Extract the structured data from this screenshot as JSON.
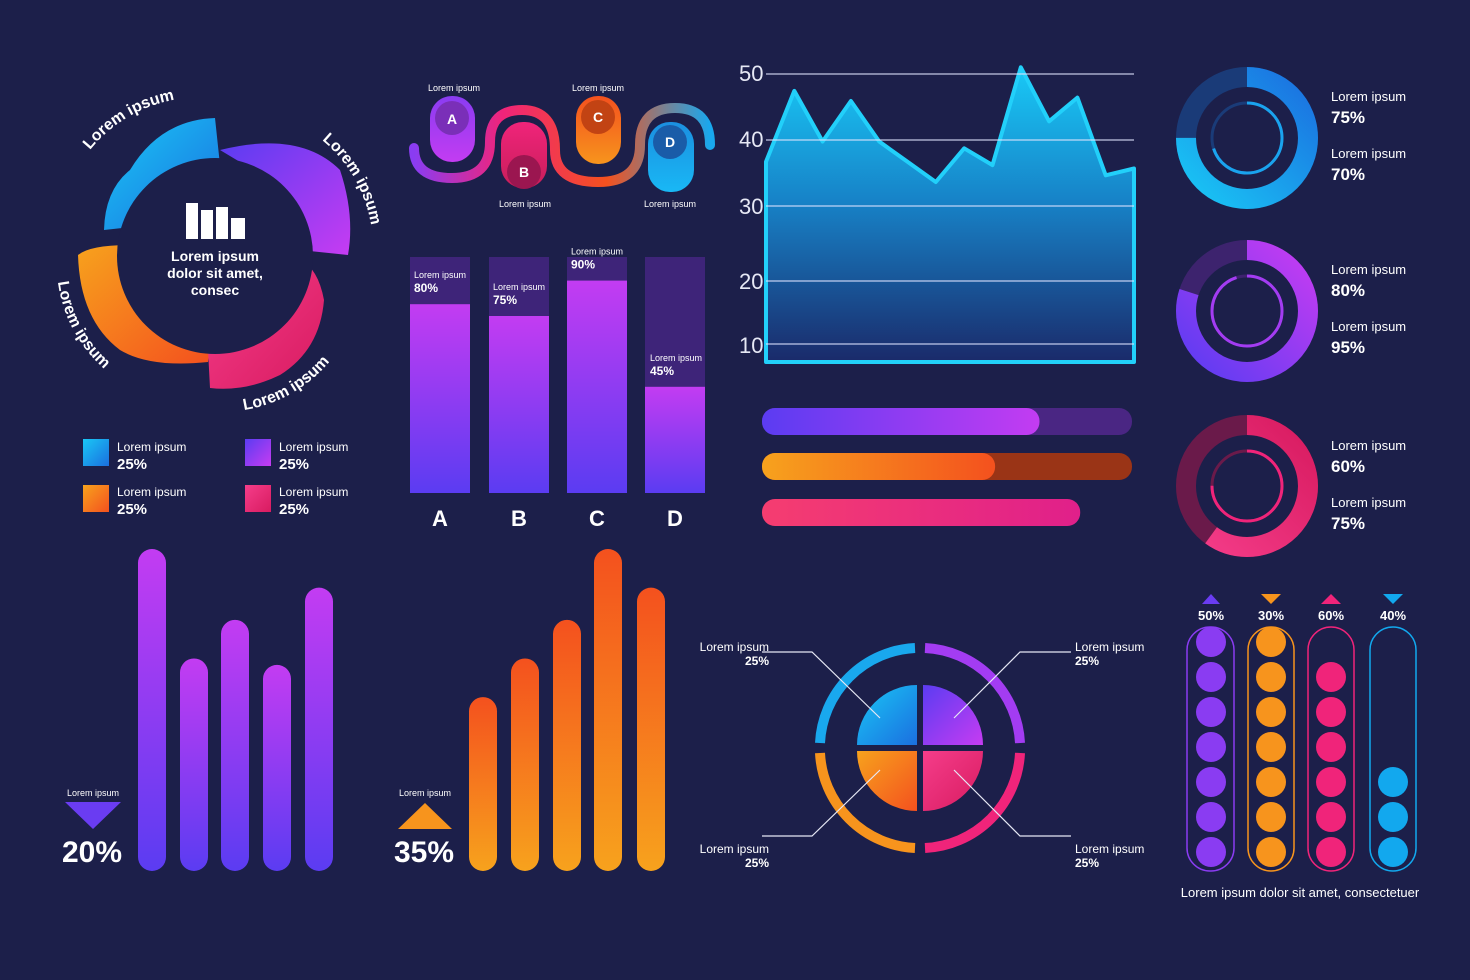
{
  "colors": {
    "background": "#1c1f4a",
    "blue": "#12a8ee",
    "purple": "#7b3cf0",
    "magenta": "#c33cf2",
    "orange": "#f7941d",
    "red_orange": "#f4511e",
    "pink": "#f0247a"
  },
  "icons": {
    "bar_chart": "bar-chart-icon",
    "triangle_down": "triangle-down-icon",
    "triangle_up": "triangle-up-icon"
  },
  "chart_data": [
    {
      "type": "pie",
      "center_text": [
        "Lorem ipsum",
        "dolor sit amet,",
        "consec"
      ],
      "segment_labels": [
        "Lorem ipsum",
        "Lorem ipsum",
        "Lorem ipsum",
        "Lorem ipsum"
      ],
      "legend": [
        {
          "label": "Lorem ipsum",
          "value": "25%",
          "color": "#12a8ee"
        },
        {
          "label": "Lorem ipsum",
          "value": "25%",
          "color": "#8a3cf2"
        },
        {
          "label": "Lorem ipsum",
          "value": "25%",
          "color": "#f7941d"
        },
        {
          "label": "Lorem ipsum",
          "value": "25%",
          "color": "#f0247a"
        }
      ]
    },
    {
      "type": "diagram",
      "steps": [
        {
          "letter": "A",
          "label": "Lorem ipsum"
        },
        {
          "letter": "B",
          "label": "Lorem ipsum"
        },
        {
          "letter": "C",
          "label": "Lorem ipsum"
        },
        {
          "letter": "D",
          "label": "Lorem ipsum"
        }
      ]
    },
    {
      "type": "bar",
      "categories": [
        "A",
        "B",
        "C",
        "D"
      ],
      "values": [
        80,
        75,
        90,
        45
      ],
      "value_labels": [
        "80%",
        "75%",
        "90%",
        "45%"
      ],
      "label": "Lorem ipsum",
      "ylim": [
        0,
        100
      ]
    },
    {
      "type": "area",
      "yticks": [
        "50",
        "40",
        "30",
        "20",
        "10"
      ],
      "ylim": [
        5,
        55
      ],
      "values": [
        37,
        47.5,
        40,
        46,
        40,
        37,
        34,
        39,
        36.5,
        51,
        43,
        46.5,
        35,
        36
      ],
      "grid": true
    },
    {
      "type": "bar",
      "orientation": "horizontal",
      "values": [
        75,
        63,
        86
      ],
      "colors": [
        "#8a3cf2",
        "#f7941d",
        "#f0247a"
      ]
    },
    {
      "type": "pie",
      "subtype": "donut",
      "items": [
        {
          "outer": {
            "label": "Lorem ipsum",
            "value": "75%",
            "fraction": 0.75
          },
          "inner": {
            "label": "Lorem ipsum",
            "value": "70%",
            "fraction": 0.7
          },
          "color": "#12a8ee"
        },
        {
          "outer": {
            "label": "Lorem ipsum",
            "value": "80%",
            "fraction": 0.8
          },
          "inner": {
            "label": "Lorem ipsum",
            "value": "95%",
            "fraction": 0.95
          },
          "color": "#a33cf2"
        },
        {
          "outer": {
            "label": "Lorem ipsum",
            "value": "60%",
            "fraction": 0.6
          },
          "inner": {
            "label": "Lorem ipsum",
            "value": "75%",
            "fraction": 0.75
          },
          "color": "#f0247a"
        }
      ]
    },
    {
      "type": "bar",
      "values": [
        100,
        66,
        78,
        64,
        88
      ],
      "indicator": {
        "label": "Lorem ipsum",
        "value": "20%",
        "direction": "down"
      },
      "colors": [
        "#c33cf2",
        "#5b3cf2"
      ]
    },
    {
      "type": "bar",
      "values": [
        54,
        66,
        78,
        100,
        88
      ],
      "indicator": {
        "label": "Lorem ipsum",
        "value": "35%",
        "direction": "up"
      },
      "colors": [
        "#f4511e",
        "#f7a21d"
      ]
    },
    {
      "type": "pie",
      "callouts": [
        {
          "label": "Lorem ipsum",
          "value": "25%"
        },
        {
          "label": "Lorem ipsum",
          "value": "25%"
        },
        {
          "label": "Lorem ipsum",
          "value": "25%"
        },
        {
          "label": "Lorem ipsum",
          "value": "25%"
        }
      ]
    },
    {
      "type": "bar",
      "subtype": "dot-columns",
      "columns": [
        {
          "value": "50%",
          "direction": "up",
          "filled": 7,
          "color": "#8a3cf2"
        },
        {
          "value": "30%",
          "direction": "down",
          "filled": 7,
          "color": "#f7941d"
        },
        {
          "value": "60%",
          "direction": "up",
          "filled": 6,
          "color": "#f0247a"
        },
        {
          "value": "40%",
          "direction": "down",
          "filled": 3,
          "color": "#12a8ee"
        }
      ],
      "caption": "Lorem ipsum dolor sit amet, consectetuer"
    }
  ]
}
